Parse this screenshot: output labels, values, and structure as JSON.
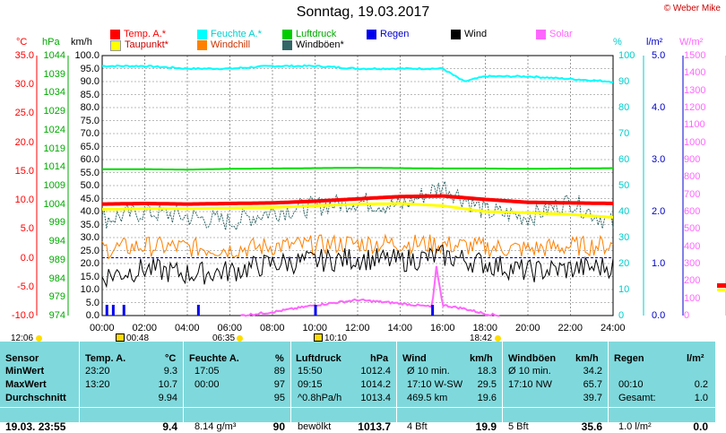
{
  "title": "Sonntag, 19.03.2017",
  "credit": "© Weber Mike",
  "legend": [
    {
      "label": "Temp. A.*",
      "color": "#ff0000"
    },
    {
      "label": "Feuchte A.*",
      "color": "#00e5e5"
    },
    {
      "label": "Luftdruck",
      "color": "#00cc00"
    },
    {
      "label": "Regen",
      "color": "#0000ee"
    },
    {
      "label": "Wind",
      "color": "#000000"
    },
    {
      "label": "Solar",
      "color": "#ff66ff"
    },
    {
      "label": "Taupunkt*",
      "color": "#ffff00"
    },
    {
      "label": "Windchill",
      "color": "#ff8000"
    },
    {
      "label": "Windböen*",
      "color": "#336666"
    }
  ],
  "axis_headers": {
    "temp": "°C",
    "press": "hPa",
    "wind": "km/h",
    "hum": "%",
    "rain": "l/m²",
    "solar": "W/m²"
  },
  "axes": {
    "temp": [
      "35.0",
      "30.0",
      "25.0",
      "20.0",
      "15.0",
      "10.0",
      "5.0",
      "0.0",
      "-5.0",
      "-10.0"
    ],
    "press": [
      "1044",
      "1039",
      "1034",
      "1029",
      "1024",
      "1019",
      "1014",
      "1009",
      "1004",
      "999",
      "994",
      "989",
      "984",
      "979",
      "974"
    ],
    "wind": [
      "100.0",
      "95.0",
      "90.0",
      "85.0",
      "80.0",
      "75.0",
      "70.0",
      "65.0",
      "60.0",
      "55.0",
      "50.0",
      "45.0",
      "40.0",
      "35.0",
      "30.0",
      "25.0",
      "20.0",
      "15.0",
      "10.0",
      "5.0",
      "0.0"
    ],
    "hum": [
      "100",
      "90",
      "80",
      "70",
      "60",
      "50",
      "40",
      "30",
      "20",
      "10",
      "0"
    ],
    "rain": [
      "5.0",
      "4.0",
      "3.0",
      "2.0",
      "1.0",
      "0.0"
    ],
    "solar": [
      "1500",
      "1400",
      "1300",
      "1200",
      "1100",
      "1000",
      "900",
      "800",
      "700",
      "600",
      "500",
      "400",
      "300",
      "200",
      "100",
      "0"
    ],
    "time": [
      "00:00",
      "02:00",
      "04:00",
      "06:00",
      "08:00",
      "10:00",
      "12:00",
      "14:00",
      "16:00",
      "18:00",
      "20:00",
      "22:00",
      "24:00"
    ]
  },
  "sun": {
    "rise_label": "06:35",
    "set_label": "18:42",
    "day_start": "12:06",
    "moon_1": "00:48",
    "moon_2": "10:10"
  },
  "chart_data": {
    "type": "line",
    "title": "Sonntag, 19.03.2017",
    "x_range": [
      "00:00",
      "24:00"
    ],
    "series": [
      {
        "name": "Temp. A.*",
        "axis": "°C",
        "x": [
          0,
          2,
          4,
          6,
          8,
          10,
          12,
          14,
          16,
          18,
          20,
          22,
          24
        ],
        "values": [
          9.3,
          9.4,
          9.3,
          9.4,
          9.5,
          9.8,
          10.2,
          10.6,
          10.7,
          10.1,
          9.6,
          9.5,
          9.4
        ]
      },
      {
        "name": "Taupunkt*",
        "axis": "°C",
        "x": [
          0,
          2,
          4,
          6,
          8,
          10,
          12,
          14,
          16,
          18,
          20,
          22,
          24
        ],
        "values": [
          8.4,
          8.5,
          8.5,
          8.6,
          8.7,
          9.0,
          9.3,
          9.4,
          9.0,
          8.0,
          7.8,
          7.5,
          7.0
        ]
      },
      {
        "name": "Luftdruck",
        "axis": "hPa",
        "x": [
          0,
          2,
          4,
          6,
          8,
          10,
          12,
          14,
          16,
          18,
          20,
          22,
          24
        ],
        "values": [
          1013.4,
          1013.4,
          1013.3,
          1013.5,
          1013.6,
          1013.7,
          1013.8,
          1013.7,
          1013.6,
          1013.6,
          1013.5,
          1013.6,
          1013.7
        ]
      },
      {
        "name": "Feuchte A.*",
        "axis": "%",
        "x": [
          0,
          2,
          4,
          6,
          8,
          10,
          12,
          14,
          16,
          17,
          18,
          20,
          22,
          24
        ],
        "values": [
          96,
          96,
          95,
          95,
          96,
          96,
          95,
          95,
          95,
          90,
          92,
          92,
          91,
          90
        ]
      },
      {
        "name": "Windchill",
        "axis": "°C",
        "x": [
          0,
          2,
          4,
          6,
          8,
          10,
          12,
          14,
          16,
          18,
          20,
          22,
          24
        ],
        "values": [
          1.5,
          2.0,
          1.8,
          1.5,
          2.0,
          2.2,
          2.5,
          2.5,
          2.3,
          1.8,
          1.5,
          2.0,
          2.2
        ]
      },
      {
        "name": "Wind",
        "axis": "km/h",
        "x": [
          0,
          2,
          4,
          6,
          8,
          10,
          12,
          14,
          16,
          18,
          20,
          22,
          24
        ],
        "values": [
          15,
          18,
          16,
          17,
          20,
          21,
          22,
          21,
          23,
          20,
          17,
          18,
          19
        ]
      },
      {
        "name": "Windböen*",
        "axis": "km/h",
        "x": [
          0,
          2,
          4,
          6,
          8,
          10,
          12,
          14,
          16,
          18,
          20,
          22,
          24
        ],
        "values": [
          37,
          40,
          38,
          36,
          40,
          42,
          44,
          42,
          50,
          40,
          38,
          44,
          35
        ]
      },
      {
        "name": "Solar",
        "axis": "W/m²",
        "x": [
          6.5,
          8,
          10,
          12,
          14,
          15.5,
          15.7,
          16,
          17,
          18,
          18.7
        ],
        "values": [
          0,
          20,
          60,
          90,
          70,
          50,
          280,
          60,
          40,
          10,
          0
        ]
      },
      {
        "name": "Regen",
        "axis": "l/m²",
        "x": [
          0.2,
          0.5,
          1.0,
          4.5,
          10.0,
          15.5
        ],
        "values": [
          0.1,
          0.1,
          0.1,
          0.1,
          0.1,
          0.1
        ]
      }
    ]
  },
  "stats": {
    "headers": {
      "sensor": "Sensor",
      "temp": "Temp. A.",
      "temp_unit": "°C",
      "hum": "Feuchte A.",
      "hum_unit": "%",
      "press": "Luftdruck",
      "press_unit": "hPa",
      "wind": "Wind",
      "wind_unit": "km/h",
      "gust": "Windböen",
      "gust_unit": "km/h",
      "rain": "Regen",
      "rain_unit": "l/m²"
    },
    "rows": [
      {
        "label": "MinWert",
        "temp_t": "23:20",
        "temp_v": "9.3",
        "hum_t": "17:05",
        "hum_v": "89",
        "press_t": "15:50",
        "press_v": "1012.4",
        "wind_t": "Ø 10 min.",
        "wind_v": "18.3",
        "gust_t": "Ø 10 min.",
        "gust_v": "34.2",
        "rain_t": "",
        "rain_v": ""
      },
      {
        "label": "MaxWert",
        "temp_t": "13:20",
        "temp_v": "10.7",
        "hum_t": "00:00",
        "hum_v": "97",
        "press_t": "09:15",
        "press_v": "1014.2",
        "wind_t": "17:10    W-SW",
        "wind_v": "29.5",
        "gust_t": "17:10       NW",
        "gust_v": "65.7",
        "rain_t": "00:10",
        "rain_v": "0.2"
      },
      {
        "label": "Durchschnitt",
        "temp_t": "",
        "temp_v": "9.94",
        "hum_t": "",
        "hum_v": "95",
        "press_t": "^0.8hPa/h",
        "press_v": "1013.4",
        "wind_t": "469.5 km",
        "wind_v": "19.6",
        "gust_t": "",
        "gust_v": "39.7",
        "rain_t": "Gesamt:",
        "rain_v": "1.0"
      },
      {
        "label": "19.03. 23:55",
        "temp_t": "",
        "temp_v": "9.4",
        "hum_t": "8.14 g/m³",
        "hum_v": "90",
        "press_t": "bewölkt",
        "press_v": "1013.7",
        "wind_t": "4 Bft",
        "wind_v": "19.9",
        "gust_t": "5 Bft",
        "gust_v": "35.6",
        "rain_t": "1.0 l/m²",
        "rain_v": "0.0"
      }
    ]
  }
}
